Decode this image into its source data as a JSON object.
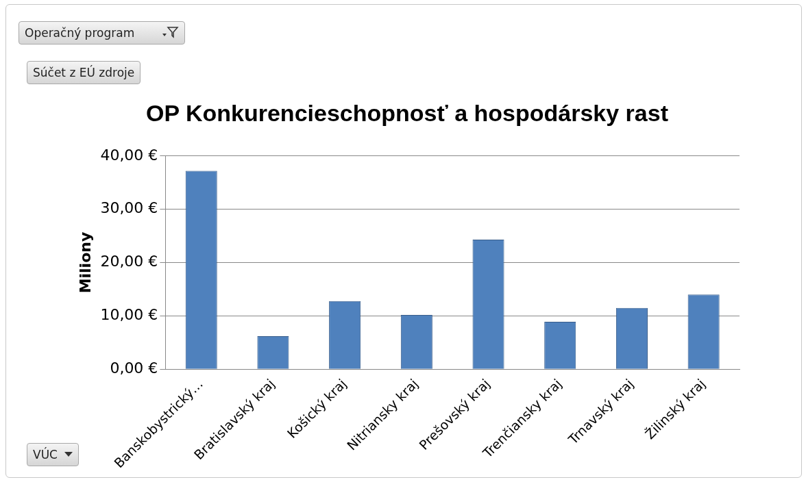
{
  "chart_data": {
    "type": "bar",
    "title": "OP Konkurencieschopnosť a hospodársky rast",
    "ylabel": "Miliony",
    "categories": [
      "Banskobystrický…",
      "Bratislavský kraj",
      "Košický kraj",
      "Nitriansky kraj",
      "Prešovský kraj",
      "Trenčiansky kraj",
      "Trnavský kraj",
      "Žilinský kraj"
    ],
    "values": [
      37.2,
      6.2,
      12.8,
      10.2,
      24.3,
      8.9,
      11.5,
      14.0
    ],
    "color": "#4f81bd",
    "ylim": [
      0,
      40
    ],
    "yticks": [
      {
        "value": 0,
        "label": "0,00 €"
      },
      {
        "value": 10,
        "label": "10,00 €"
      },
      {
        "value": 20,
        "label": "20,00 €"
      },
      {
        "value": 30,
        "label": "30,00 €"
      },
      {
        "value": 40,
        "label": "40,00 €"
      }
    ],
    "grid": "y",
    "legend": false,
    "annotations": [
      "Operačný program",
      "Súčet z EÚ zdroje",
      "VÚC"
    ]
  }
}
